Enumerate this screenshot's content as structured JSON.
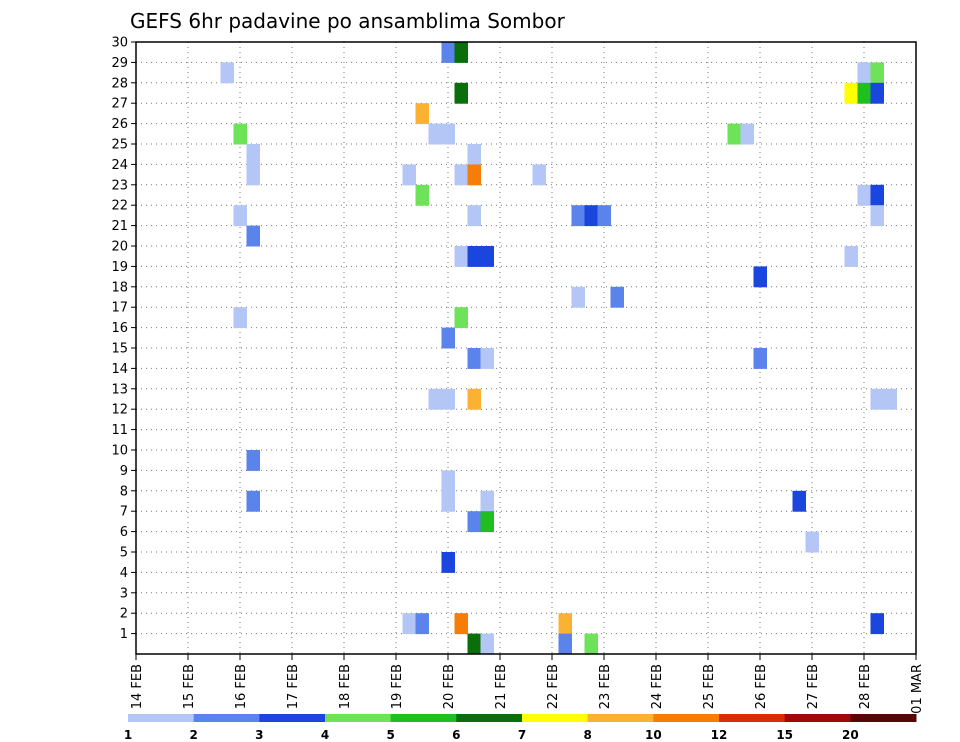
{
  "chart_data": {
    "type": "heatmap",
    "title": "GEFS 6hr padavine po ansamblima Sombor",
    "x_tick_labels": [
      "14 FEB",
      "15 FEB",
      "16 FEB",
      "17 FEB",
      "18 FEB",
      "19 FEB",
      "20 FEB",
      "21 FEB",
      "22 FEB",
      "23 FEB",
      "24 FEB",
      "25 FEB",
      "26 FEB",
      "27 FEB",
      "28 FEB",
      "01 MAR"
    ],
    "y_tick_labels": [
      "1",
      "2",
      "3",
      "4",
      "5",
      "6",
      "7",
      "8",
      "9",
      "10",
      "11",
      "12",
      "13",
      "14",
      "15",
      "16",
      "17",
      "18",
      "19",
      "20",
      "21",
      "22",
      "23",
      "24",
      "25",
      "26",
      "27",
      "28",
      "29",
      "30"
    ],
    "x_range_days": [
      0,
      15
    ],
    "y_range": [
      0,
      30
    ],
    "grid": true,
    "colorbar": {
      "colors": [
        "#b4c6f5",
        "#5b83ec",
        "#1a46dd",
        "#6ee35a",
        "#1fbf1f",
        "#0a6e0a",
        "#ffff00",
        "#fbb233",
        "#f57d09",
        "#dd2a0a",
        "#9e0a0a",
        "#5a0505"
      ],
      "labels": [
        "1",
        "2",
        "3",
        "4",
        "5",
        "6",
        "7",
        "8",
        "10",
        "12",
        "15",
        "20"
      ]
    },
    "cells": [
      {
        "x": 6.0,
        "y": 30,
        "c": 2
      },
      {
        "x": 6.25,
        "y": 30,
        "c": 6
      },
      {
        "x": 1.75,
        "y": 29,
        "c": 1
      },
      {
        "x": 14.0,
        "y": 29,
        "c": 1
      },
      {
        "x": 14.25,
        "y": 29,
        "c": 4
      },
      {
        "x": 6.25,
        "y": 28,
        "c": 6
      },
      {
        "x": 13.75,
        "y": 28,
        "c": 7
      },
      {
        "x": 14.0,
        "y": 28,
        "c": 5
      },
      {
        "x": 14.25,
        "y": 28,
        "c": 3
      },
      {
        "x": 5.5,
        "y": 27,
        "c": 8
      },
      {
        "x": 2.0,
        "y": 26,
        "c": 4
      },
      {
        "x": 5.75,
        "y": 26,
        "c": 1
      },
      {
        "x": 6.0,
        "y": 26,
        "c": 1
      },
      {
        "x": 11.5,
        "y": 26,
        "c": 4
      },
      {
        "x": 11.75,
        "y": 26,
        "c": 1
      },
      {
        "x": 2.25,
        "y": 25,
        "c": 1
      },
      {
        "x": 6.5,
        "y": 25,
        "c": 1
      },
      {
        "x": 2.25,
        "y": 24,
        "c": 1
      },
      {
        "x": 5.25,
        "y": 24,
        "c": 1
      },
      {
        "x": 6.25,
        "y": 24,
        "c": 1
      },
      {
        "x": 6.5,
        "y": 24,
        "c": 9
      },
      {
        "x": 7.75,
        "y": 24,
        "c": 1
      },
      {
        "x": 5.5,
        "y": 23,
        "c": 4
      },
      {
        "x": 14.0,
        "y": 23,
        "c": 1
      },
      {
        "x": 14.25,
        "y": 23,
        "c": 3
      },
      {
        "x": 2.0,
        "y": 22,
        "c": 1
      },
      {
        "x": 6.5,
        "y": 22,
        "c": 1
      },
      {
        "x": 8.5,
        "y": 22,
        "c": 2
      },
      {
        "x": 8.75,
        "y": 22,
        "c": 3
      },
      {
        "x": 9.0,
        "y": 22,
        "c": 2
      },
      {
        "x": 14.25,
        "y": 22,
        "c": 1
      },
      {
        "x": 2.25,
        "y": 21,
        "c": 2
      },
      {
        "x": 6.25,
        "y": 20,
        "c": 1
      },
      {
        "x": 6.5,
        "y": 20,
        "c": 3
      },
      {
        "x": 6.75,
        "y": 20,
        "c": 3
      },
      {
        "x": 13.75,
        "y": 20,
        "c": 1
      },
      {
        "x": 12.0,
        "y": 19,
        "c": 3
      },
      {
        "x": 8.5,
        "y": 18,
        "c": 1
      },
      {
        "x": 9.25,
        "y": 18,
        "c": 2
      },
      {
        "x": 2.0,
        "y": 17,
        "c": 1
      },
      {
        "x": 6.25,
        "y": 17,
        "c": 4
      },
      {
        "x": 6.0,
        "y": 16,
        "c": 2
      },
      {
        "x": 6.5,
        "y": 15,
        "c": 2
      },
      {
        "x": 6.75,
        "y": 15,
        "c": 1
      },
      {
        "x": 12.0,
        "y": 15,
        "c": 2
      },
      {
        "x": 5.75,
        "y": 13,
        "c": 1
      },
      {
        "x": 6.0,
        "y": 13,
        "c": 1
      },
      {
        "x": 6.5,
        "y": 13,
        "c": 8
      },
      {
        "x": 14.25,
        "y": 13,
        "c": 1
      },
      {
        "x": 14.5,
        "y": 13,
        "c": 1
      },
      {
        "x": 2.25,
        "y": 10,
        "c": 2
      },
      {
        "x": 6.0,
        "y": 9,
        "c": 1
      },
      {
        "x": 2.25,
        "y": 8,
        "c": 2
      },
      {
        "x": 6.0,
        "y": 8,
        "c": 1
      },
      {
        "x": 6.75,
        "y": 8,
        "c": 1
      },
      {
        "x": 12.75,
        "y": 8,
        "c": 3
      },
      {
        "x": 6.5,
        "y": 7,
        "c": 2
      },
      {
        "x": 6.75,
        "y": 7,
        "c": 5
      },
      {
        "x": 13.0,
        "y": 6,
        "c": 1
      },
      {
        "x": 6.0,
        "y": 5,
        "c": 3
      },
      {
        "x": 5.25,
        "y": 2,
        "c": 1
      },
      {
        "x": 5.5,
        "y": 2,
        "c": 2
      },
      {
        "x": 6.25,
        "y": 2,
        "c": 9
      },
      {
        "x": 8.25,
        "y": 2,
        "c": 8
      },
      {
        "x": 14.25,
        "y": 2,
        "c": 3
      },
      {
        "x": 6.5,
        "y": 1,
        "c": 6
      },
      {
        "x": 6.75,
        "y": 1,
        "c": 1
      },
      {
        "x": 8.25,
        "y": 1,
        "c": 2
      },
      {
        "x": 8.75,
        "y": 1,
        "c": 4
      }
    ]
  }
}
